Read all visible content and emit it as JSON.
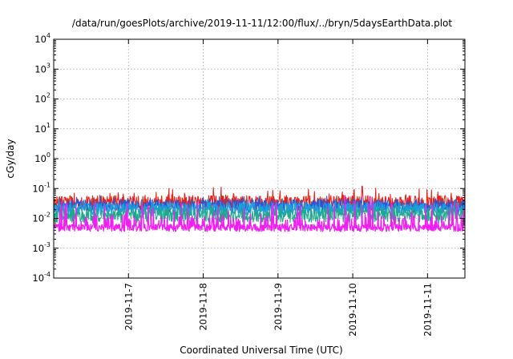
{
  "chart_data": {
    "type": "line",
    "title": "/data/run/goesPlots/archive/2019-11-11/12:00/flux/../bryn/5daysEarthData.plot",
    "xlabel": "Coordinated Universal Time (UTC)",
    "ylabel": "cGy/day",
    "yscale": "log",
    "ylim": [
      0.0001,
      10000
    ],
    "yticks": [
      {
        "base": "10",
        "exp": "4"
      },
      {
        "base": "10",
        "exp": "3"
      },
      {
        "base": "10",
        "exp": "2"
      },
      {
        "base": "10",
        "exp": "1"
      },
      {
        "base": "10",
        "exp": "0"
      },
      {
        "base": "10",
        "exp": "-1"
      },
      {
        "base": "10",
        "exp": "-2"
      },
      {
        "base": "10",
        "exp": "-3"
      },
      {
        "base": "10",
        "exp": "-4"
      }
    ],
    "xlim": [
      "2019-11-06T00:00",
      "2019-11-11T12:00"
    ],
    "xticks": [
      "2019-11-7",
      "2019-11-8",
      "2019-11-9",
      "2019-11-10",
      "2019-11-11"
    ],
    "grid": true,
    "series": [
      {
        "color": "#e8231a",
        "base": 0.033,
        "spread": 0.25,
        "spike": 0.35
      },
      {
        "color": "#2b55d6",
        "base": 0.026,
        "spread": 0.22,
        "spike": 0.2
      },
      {
        "color": "#1aa0e0",
        "base": 0.021,
        "spread": 0.22,
        "spike": 0.15
      },
      {
        "color": "#1fa88c",
        "base": 0.013,
        "spread": 0.25,
        "spike": 0.1
      },
      {
        "color": "#f01ef0",
        "base": 0.0048,
        "spread": 0.12,
        "spike": 0.85
      }
    ]
  }
}
